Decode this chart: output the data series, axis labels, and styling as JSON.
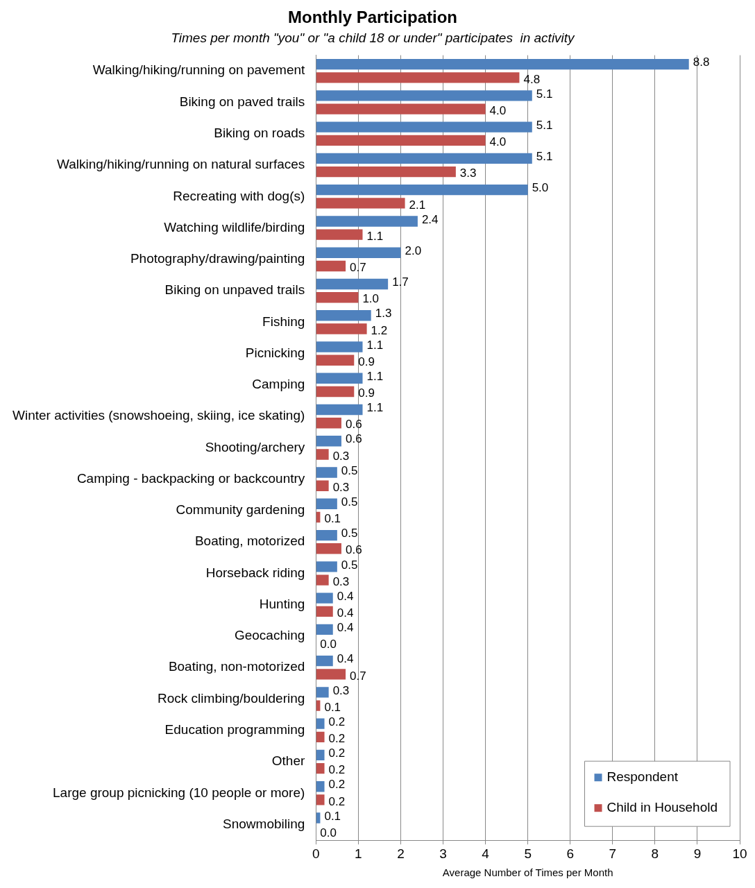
{
  "chart_data": {
    "type": "bar",
    "orientation": "horizontal",
    "title": "Monthly Participation",
    "subtitle": "Times per month \"you\" or \"a child 18 or under\" participates  in activity",
    "xlabel": "Average Number of Times per Month",
    "categories": [
      "Walking/hiking/running on pavement",
      "Biking on paved trails",
      "Biking on roads",
      "Walking/hiking/running on natural surfaces",
      "Recreating with dog(s)",
      "Watching wildlife/birding",
      "Photography/drawing/painting",
      "Biking on unpaved trails",
      "Fishing",
      "Picnicking",
      "Camping",
      "Winter activities (snowshoeing, skiing, ice skating)",
      "Shooting/archery",
      "Camping - backpacking or backcountry",
      "Community gardening",
      "Boating, motorized",
      "Horseback riding",
      "Hunting",
      "Geocaching",
      "Boating, non-motorized",
      "Rock climbing/bouldering",
      "Education programming",
      "Other",
      "Large group picnicking (10 people or more)",
      "Snowmobiling"
    ],
    "series": [
      {
        "name": "Respondent",
        "color": "#4f81bd",
        "values": [
          8.8,
          5.1,
          5.1,
          5.1,
          5.0,
          2.4,
          2.0,
          1.7,
          1.3,
          1.1,
          1.1,
          1.1,
          0.6,
          0.5,
          0.5,
          0.5,
          0.5,
          0.4,
          0.4,
          0.4,
          0.3,
          0.2,
          0.2,
          0.2,
          0.1
        ],
        "value_labels": [
          "8.8",
          "5.1",
          "5.1",
          "5.1",
          "5.0",
          "2.4",
          "2.0",
          "1.7",
          "1.3",
          "1.1",
          "1.1",
          "1.1",
          "0.6",
          "0.5",
          "0.5",
          "0.5",
          "0.5",
          "0.4",
          "0.4",
          "0.4",
          "0.3",
          "0.2",
          "0.2",
          "0.2",
          "0.1"
        ]
      },
      {
        "name": "Child in Household",
        "color": "#c0504d",
        "values": [
          4.8,
          4.0,
          4.0,
          3.3,
          2.1,
          1.1,
          0.7,
          1.0,
          1.2,
          0.9,
          0.9,
          0.6,
          0.3,
          0.3,
          0.1,
          0.6,
          0.3,
          0.4,
          0.0,
          0.7,
          0.1,
          0.2,
          0.2,
          0.2,
          0.0
        ],
        "value_labels": [
          "4.8",
          "4.0",
          "4.0",
          "3.3",
          "2.1",
          "1.1",
          "0.7",
          "1.0",
          "1.2",
          "0.9",
          "0.9",
          "0.6",
          "0.3",
          "0.3",
          "0.1",
          "0.6",
          "0.3",
          "0.4",
          "0.0",
          "0.7",
          "0.1",
          "0.2",
          "0.2",
          "0.2",
          "0.0"
        ]
      }
    ],
    "xlim": [
      0,
      10
    ],
    "xticks": [
      0,
      1,
      2,
      3,
      4,
      5,
      6,
      7,
      8,
      9,
      10
    ],
    "grid": "x",
    "legend": "bottom right"
  }
}
